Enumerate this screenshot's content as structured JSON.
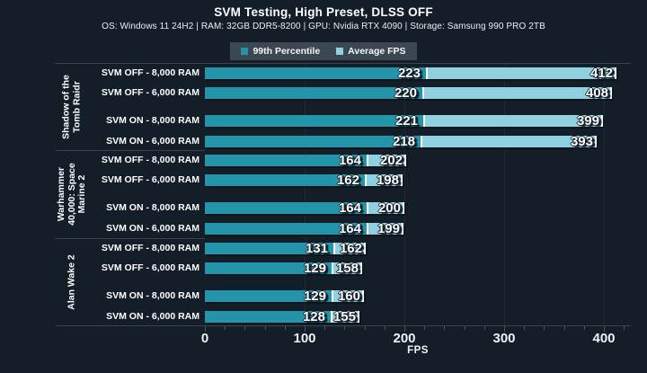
{
  "title": "SVM Testing, High Preset, DLSS OFF",
  "subtitle": "OS: Windows 11 24H2 | RAM: 32GB DDR5-8200 | GPU: Nvidia RTX 4090 | Storage: Samsung 990 PRO 2TB",
  "legend": {
    "items": [
      {
        "label": "99th Percentile",
        "color": "#2494ab"
      },
      {
        "label": "Average FPS",
        "color": "#8fd1e1"
      }
    ]
  },
  "colors": {
    "background": "#141e28",
    "p99_bar": "#2494ab",
    "avg_bar": "#8fd1e1",
    "bar_edge": "#ffffff",
    "legend_background": "#3b4852",
    "gridline": "#1e2a35",
    "spine": "#38454f",
    "tick": "#49565f",
    "text": "#ffffff"
  },
  "chart_data": {
    "type": "bar",
    "orientation": "horizontal",
    "stacked_overlay": "avg segment drawn from p99 to avg",
    "title": "SVM Testing, High Preset, DLSS OFF",
    "xlabel": "FPS",
    "xlim": [
      0,
      425
    ],
    "xticks": [
      0,
      100,
      200,
      300,
      400
    ],
    "minor_tick_step": 20,
    "grid": true,
    "legend_position": "top",
    "series": [
      "99th Percentile",
      "Average FPS"
    ],
    "groups": [
      {
        "label": "Shadow of the Tomb Raidr",
        "label_lines": [
          "Shadow of the",
          "Tomb Raidr"
        ],
        "rows": [
          {
            "label": "SVM OFF - 8,000 RAM",
            "p99": 223,
            "avg": 412
          },
          {
            "label": "SVM OFF - 6,000 RAM",
            "p99": 220,
            "avg": 408
          },
          {
            "label": "SVM ON - 8,000 RAM",
            "p99": 221,
            "avg": 399
          },
          {
            "label": "SVM ON - 6,000 RAM",
            "p99": 218,
            "avg": 393
          }
        ]
      },
      {
        "label": "Warhammer 40,000: Space Marine 2",
        "label_lines": [
          "Warhammer",
          "40,000: Space",
          "Marine 2"
        ],
        "rows": [
          {
            "label": "SVM OFF - 8,000 RAM",
            "p99": 164,
            "avg": 202
          },
          {
            "label": "SVM OFF - 6,000 RAM",
            "p99": 162,
            "avg": 198
          },
          {
            "label": "SVM ON - 8,000 RAM",
            "p99": 164,
            "avg": 200
          },
          {
            "label": "SVM ON - 6,000 RAM",
            "p99": 164,
            "avg": 199
          }
        ]
      },
      {
        "label": "Alan Wake 2",
        "label_lines": [
          "Alan Wake 2"
        ],
        "rows": [
          {
            "label": "SVM OFF - 8,000 RAM",
            "p99": 131,
            "avg": 162
          },
          {
            "label": "SVM OFF - 6,000 RAM",
            "p99": 129,
            "avg": 158
          },
          {
            "label": "SVM ON - 8,000 RAM",
            "p99": 129,
            "avg": 160
          },
          {
            "label": "SVM ON - 6,000 RAM",
            "p99": 128,
            "avg": 155
          }
        ]
      }
    ]
  }
}
